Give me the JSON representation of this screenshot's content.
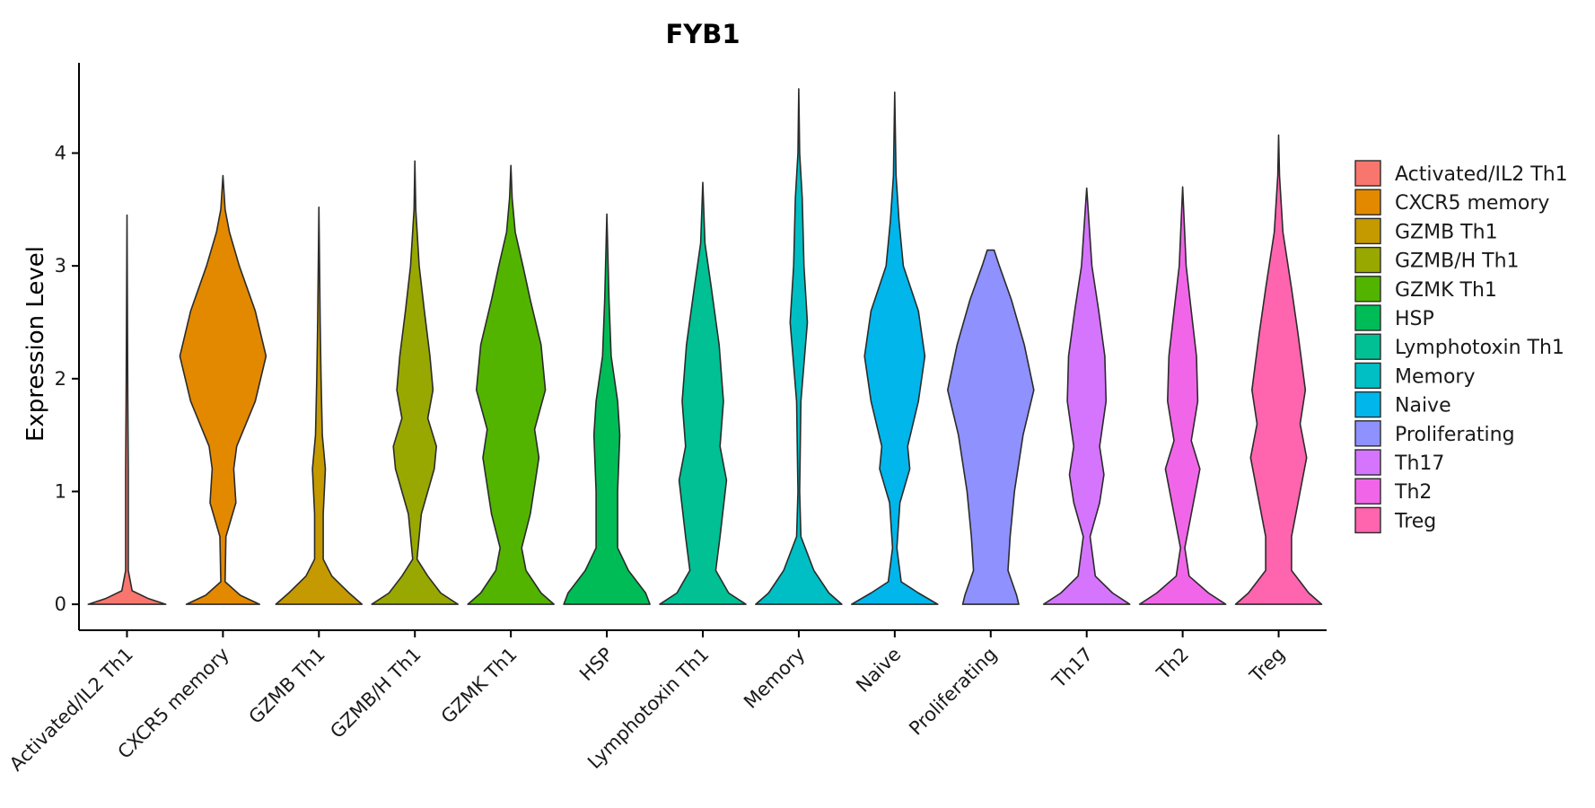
{
  "chart_data": {
    "type": "violin",
    "title": "FYB1",
    "xlabel": "",
    "ylabel": "Expression Level",
    "ylim": [
      -0.23,
      4.8
    ],
    "yticks": [
      0,
      1,
      2,
      3,
      4
    ],
    "yticklabels": [
      "0",
      "1",
      "2",
      "3",
      "4"
    ],
    "grid": false,
    "legend_position": "right",
    "categories": [
      "Activated/IL2 Th1",
      "CXCR5 memory",
      "GZMB Th1",
      "GZMB/H Th1",
      "GZMK Th1",
      "HSP",
      "Lymphotoxin Th1",
      "Memory",
      "Naive",
      "Proliferating",
      "Th17",
      "Th2",
      "Treg"
    ],
    "colors": [
      "#F8766D",
      "#E38900",
      "#C49A00",
      "#99A800",
      "#53B400",
      "#00BC56",
      "#00C094",
      "#00BFC4",
      "#00B6EB",
      "#8F91FF",
      "#D575FE",
      "#F166E8",
      "#FF65AE"
    ],
    "series": [
      {
        "name": "Activated/IL2 Th1",
        "max": 3.45,
        "profile": [
          [
            0,
            0.9
          ],
          [
            0.05,
            0.5
          ],
          [
            0.12,
            0.12
          ],
          [
            0.3,
            0.03
          ],
          [
            0.8,
            0.03
          ],
          [
            1.2,
            0.03
          ],
          [
            1.8,
            0.02
          ],
          [
            3.45,
            0
          ]
        ]
      },
      {
        "name": "CXCR5 memory",
        "max": 3.8,
        "profile": [
          [
            0,
            0.85
          ],
          [
            0.08,
            0.4
          ],
          [
            0.2,
            0.05
          ],
          [
            0.6,
            0.07
          ],
          [
            0.9,
            0.3
          ],
          [
            1.2,
            0.25
          ],
          [
            1.4,
            0.32
          ],
          [
            1.8,
            0.75
          ],
          [
            2.2,
            1.0
          ],
          [
            2.6,
            0.75
          ],
          [
            3.0,
            0.38
          ],
          [
            3.3,
            0.15
          ],
          [
            3.5,
            0.05
          ],
          [
            3.8,
            0
          ]
        ]
      },
      {
        "name": "GZMB Th1",
        "max": 3.52,
        "profile": [
          [
            0,
            1.0
          ],
          [
            0.1,
            0.7
          ],
          [
            0.25,
            0.3
          ],
          [
            0.4,
            0.1
          ],
          [
            0.8,
            0.1
          ],
          [
            1.2,
            0.15
          ],
          [
            1.5,
            0.08
          ],
          [
            2.0,
            0.05
          ],
          [
            2.5,
            0.03
          ],
          [
            3.52,
            0
          ]
        ]
      },
      {
        "name": "GZMB/H Th1",
        "max": 3.93,
        "profile": [
          [
            0,
            1.0
          ],
          [
            0.1,
            0.6
          ],
          [
            0.25,
            0.3
          ],
          [
            0.4,
            0.05
          ],
          [
            0.8,
            0.15
          ],
          [
            1.2,
            0.45
          ],
          [
            1.4,
            0.5
          ],
          [
            1.65,
            0.3
          ],
          [
            1.9,
            0.42
          ],
          [
            2.2,
            0.35
          ],
          [
            2.6,
            0.22
          ],
          [
            3.0,
            0.1
          ],
          [
            3.5,
            0.02
          ],
          [
            3.93,
            0
          ]
        ]
      },
      {
        "name": "GZMK Th1",
        "max": 3.89,
        "profile": [
          [
            0,
            1.0
          ],
          [
            0.1,
            0.7
          ],
          [
            0.3,
            0.35
          ],
          [
            0.5,
            0.25
          ],
          [
            0.8,
            0.45
          ],
          [
            1.3,
            0.65
          ],
          [
            1.55,
            0.55
          ],
          [
            1.9,
            0.8
          ],
          [
            2.3,
            0.7
          ],
          [
            2.7,
            0.45
          ],
          [
            3.0,
            0.28
          ],
          [
            3.3,
            0.1
          ],
          [
            3.6,
            0.03
          ],
          [
            3.89,
            0
          ]
        ]
      },
      {
        "name": "HSP",
        "max": 3.46,
        "profile": [
          [
            0,
            1.0
          ],
          [
            0.1,
            0.9
          ],
          [
            0.3,
            0.5
          ],
          [
            0.5,
            0.25
          ],
          [
            1.0,
            0.25
          ],
          [
            1.5,
            0.3
          ],
          [
            1.8,
            0.25
          ],
          [
            2.2,
            0.1
          ],
          [
            2.7,
            0.05
          ],
          [
            3.46,
            0
          ]
        ]
      },
      {
        "name": "Lymphotoxin Th1",
        "max": 3.74,
        "profile": [
          [
            0,
            1.0
          ],
          [
            0.1,
            0.6
          ],
          [
            0.3,
            0.3
          ],
          [
            0.6,
            0.4
          ],
          [
            1.1,
            0.55
          ],
          [
            1.4,
            0.4
          ],
          [
            1.8,
            0.48
          ],
          [
            2.3,
            0.38
          ],
          [
            2.8,
            0.2
          ],
          [
            3.2,
            0.05
          ],
          [
            3.74,
            0
          ]
        ]
      },
      {
        "name": "Memory",
        "max": 4.57,
        "profile": [
          [
            0,
            1.0
          ],
          [
            0.1,
            0.7
          ],
          [
            0.3,
            0.35
          ],
          [
            0.6,
            0.05
          ],
          [
            1.0,
            0.02
          ],
          [
            1.8,
            0.05
          ],
          [
            2.5,
            0.2
          ],
          [
            3.0,
            0.12
          ],
          [
            3.6,
            0.08
          ],
          [
            4.0,
            0.02
          ],
          [
            4.57,
            0
          ]
        ]
      },
      {
        "name": "Naive",
        "max": 4.54,
        "profile": [
          [
            0,
            1.0
          ],
          [
            0.1,
            0.55
          ],
          [
            0.2,
            0.15
          ],
          [
            0.5,
            0.05
          ],
          [
            0.9,
            0.12
          ],
          [
            1.2,
            0.35
          ],
          [
            1.4,
            0.3
          ],
          [
            1.8,
            0.55
          ],
          [
            2.2,
            0.7
          ],
          [
            2.6,
            0.55
          ],
          [
            3.0,
            0.2
          ],
          [
            3.4,
            0.1
          ],
          [
            3.8,
            0.03
          ],
          [
            4.54,
            0
          ]
        ]
      },
      {
        "name": "Proliferating",
        "max": 3.14,
        "profile": [
          [
            0,
            0.65
          ],
          [
            0.08,
            0.6
          ],
          [
            0.3,
            0.4
          ],
          [
            0.6,
            0.45
          ],
          [
            1.0,
            0.55
          ],
          [
            1.5,
            0.75
          ],
          [
            1.9,
            1.0
          ],
          [
            2.3,
            0.78
          ],
          [
            2.7,
            0.48
          ],
          [
            3.0,
            0.2
          ],
          [
            3.14,
            0.08
          ]
        ]
      },
      {
        "name": "Th17",
        "max": 3.69,
        "profile": [
          [
            0,
            1.0
          ],
          [
            0.1,
            0.6
          ],
          [
            0.25,
            0.2
          ],
          [
            0.6,
            0.08
          ],
          [
            0.9,
            0.3
          ],
          [
            1.15,
            0.4
          ],
          [
            1.4,
            0.3
          ],
          [
            1.8,
            0.45
          ],
          [
            2.2,
            0.42
          ],
          [
            2.6,
            0.28
          ],
          [
            3.0,
            0.12
          ],
          [
            3.69,
            0
          ]
        ]
      },
      {
        "name": "Th2",
        "max": 3.7,
        "profile": [
          [
            0,
            1.0
          ],
          [
            0.1,
            0.6
          ],
          [
            0.25,
            0.15
          ],
          [
            0.5,
            0.05
          ],
          [
            0.9,
            0.25
          ],
          [
            1.2,
            0.4
          ],
          [
            1.45,
            0.2
          ],
          [
            1.8,
            0.35
          ],
          [
            2.2,
            0.32
          ],
          [
            2.6,
            0.2
          ],
          [
            3.0,
            0.08
          ],
          [
            3.7,
            0
          ]
        ]
      },
      {
        "name": "Treg",
        "max": 4.16,
        "profile": [
          [
            0,
            1.0
          ],
          [
            0.1,
            0.7
          ],
          [
            0.3,
            0.3
          ],
          [
            0.6,
            0.3
          ],
          [
            1.0,
            0.5
          ],
          [
            1.3,
            0.65
          ],
          [
            1.6,
            0.5
          ],
          [
            1.9,
            0.62
          ],
          [
            2.4,
            0.45
          ],
          [
            2.8,
            0.3
          ],
          [
            3.3,
            0.1
          ],
          [
            3.8,
            0.02
          ],
          [
            4.16,
            0
          ]
        ]
      }
    ]
  }
}
